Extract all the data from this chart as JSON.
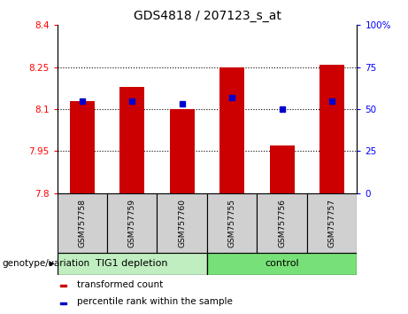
{
  "title": "GDS4818 / 207123_s_at",
  "categories": [
    "GSM757758",
    "GSM757759",
    "GSM757760",
    "GSM757755",
    "GSM757756",
    "GSM757757"
  ],
  "group_labels": [
    "TIG1 depletion",
    "control"
  ],
  "red_values": [
    8.13,
    8.18,
    8.1,
    8.25,
    7.97,
    8.26
  ],
  "blue_values_pct": [
    55,
    55,
    53,
    57,
    50,
    55
  ],
  "ylim_left": [
    7.8,
    8.4
  ],
  "ylim_right": [
    0,
    100
  ],
  "yticks_left": [
    7.8,
    7.95,
    8.1,
    8.25,
    8.4
  ],
  "yticks_right": [
    0,
    25,
    50,
    75,
    100
  ],
  "ytick_labels_left": [
    "7.8",
    "7.95",
    "8.1",
    "8.25",
    "8.4"
  ],
  "ytick_labels_right": [
    "0",
    "25",
    "50",
    "75",
    "100%"
  ],
  "hlines": [
    7.95,
    8.1,
    8.25
  ],
  "bar_color": "#CC0000",
  "marker_color": "#0000CC",
  "bar_width": 0.5,
  "base_value": 7.8,
  "legend_items": [
    "transformed count",
    "percentile rank within the sample"
  ],
  "legend_colors": [
    "#CC0000",
    "#0000CC"
  ],
  "group1_color": "#c0eec0",
  "group2_color": "#78e078",
  "gray_color": "#d0d0d0",
  "title_fontsize": 10,
  "tick_fontsize": 7.5,
  "label_fontsize": 6.5,
  "group_fontsize": 8,
  "legend_fontsize": 7.5,
  "geno_fontsize": 7.5
}
